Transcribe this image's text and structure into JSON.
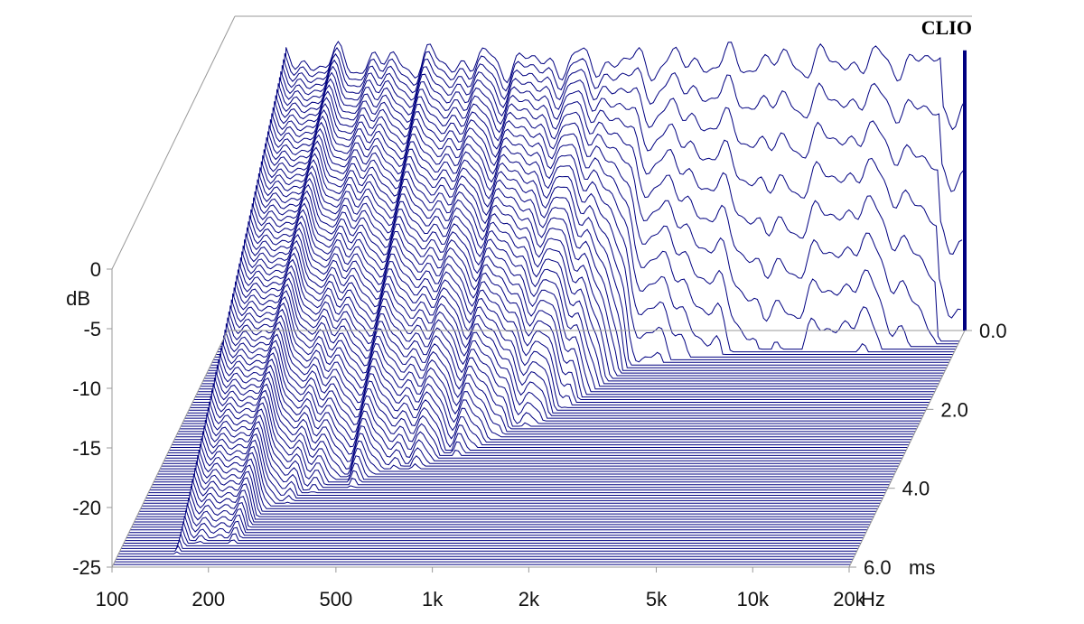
{
  "chart_data": {
    "type": "waterfall",
    "brand": "CLIO",
    "colors": {
      "trace": "#000080",
      "floor_fill": "#000080",
      "axes": "#999999",
      "text": "#111111"
    },
    "x_axis": {
      "label": "Hz",
      "scale": "log",
      "range": [
        100,
        20000
      ],
      "ticks": [
        "100",
        "200",
        "500",
        "1k",
        "2k",
        "5k",
        "10k",
        "20k"
      ],
      "tick_values": [
        100,
        200,
        500,
        1000,
        2000,
        5000,
        10000,
        20000
      ]
    },
    "y_axis": {
      "label": "dB",
      "range": [
        -25,
        0
      ],
      "ticks": [
        "0",
        "-5",
        "-10",
        "-15",
        "-20",
        "-25"
      ],
      "tick_values": [
        0,
        -5,
        -10,
        -15,
        -20,
        -25
      ]
    },
    "z_axis": {
      "label": "ms",
      "range": [
        0,
        6.0
      ],
      "ticks": [
        "0.0",
        "2.0",
        "4.0",
        "6.0"
      ],
      "tick_values": [
        0,
        2,
        4,
        6
      ]
    },
    "slices": 90,
    "decay_ms_by_frequency": [
      {
        "hz": 160,
        "decay_ms": 6.0
      },
      {
        "hz": 200,
        "decay_ms": 6.0
      },
      {
        "hz": 300,
        "decay_ms": 4.5
      },
      {
        "hz": 500,
        "decay_ms": 4.0
      },
      {
        "hz": 800,
        "decay_ms": 3.5
      },
      {
        "hz": 1000,
        "decay_ms": 3.0
      },
      {
        "hz": 1500,
        "decay_ms": 2.2
      },
      {
        "hz": 2000,
        "decay_ms": 1.0
      },
      {
        "hz": 5000,
        "decay_ms": 0.5
      },
      {
        "hz": 10000,
        "decay_ms": 0.6
      },
      {
        "hz": 20000,
        "decay_ms": 0.3
      }
    ]
  }
}
